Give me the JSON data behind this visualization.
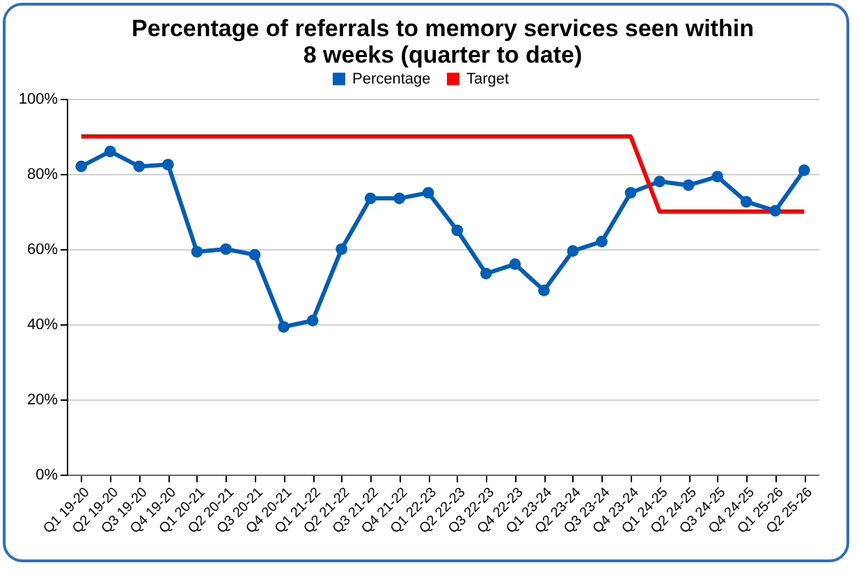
{
  "chart_data": {
    "type": "line",
    "title": "Percentage of referrals to memory services seen within 8 weeks (quarter to date)",
    "categories": [
      "Q1 19-20",
      "Q2 19-20",
      "Q3 19-20",
      "Q4 19-20",
      "Q1 20-21",
      "Q2 20-21",
      "Q3 20-21",
      "Q4 20-21",
      "Q1 21-22",
      "Q2 21-22",
      "Q3 21-22",
      "Q4 21-22",
      "Q1 22-23",
      "Q2 22-23",
      "Q3 22-23",
      "Q4 22-23",
      "Q1 23-24",
      "Q2 23-24",
      "Q3 23-24",
      "Q4 23-24",
      "Q1 24-25",
      "Q2 24-25",
      "Q3 24-25",
      "Q4 24-25",
      "Q1 25-26",
      "Q2 25-26"
    ],
    "series": [
      {
        "name": "Percentage",
        "color": "#005eb8",
        "marker": "circle",
        "values": [
          82,
          86,
          82,
          82.5,
          59.3,
          60,
          58.5,
          39.3,
          41,
          60,
          73.5,
          73.5,
          75,
          65,
          53.5,
          56,
          49,
          59.5,
          62,
          75,
          78,
          77,
          79.3,
          72.6,
          70.2,
          81
        ]
      },
      {
        "name": "Target",
        "color": "#ff0000",
        "marker": "none",
        "values": [
          90,
          90,
          90,
          90,
          90,
          90,
          90,
          90,
          90,
          90,
          90,
          90,
          90,
          90,
          90,
          90,
          90,
          90,
          90,
          90,
          70,
          70,
          70,
          70,
          70,
          70
        ]
      }
    ],
    "ylim": [
      0,
      100
    ],
    "yticks": [
      {
        "value": 0,
        "label": "0%"
      },
      {
        "value": 20,
        "label": "20%"
      },
      {
        "value": 40,
        "label": "40%"
      },
      {
        "value": 60,
        "label": "60%"
      },
      {
        "value": 80,
        "label": "80%"
      },
      {
        "value": 100,
        "label": "100%"
      }
    ],
    "grid": "y",
    "legend": "top"
  }
}
